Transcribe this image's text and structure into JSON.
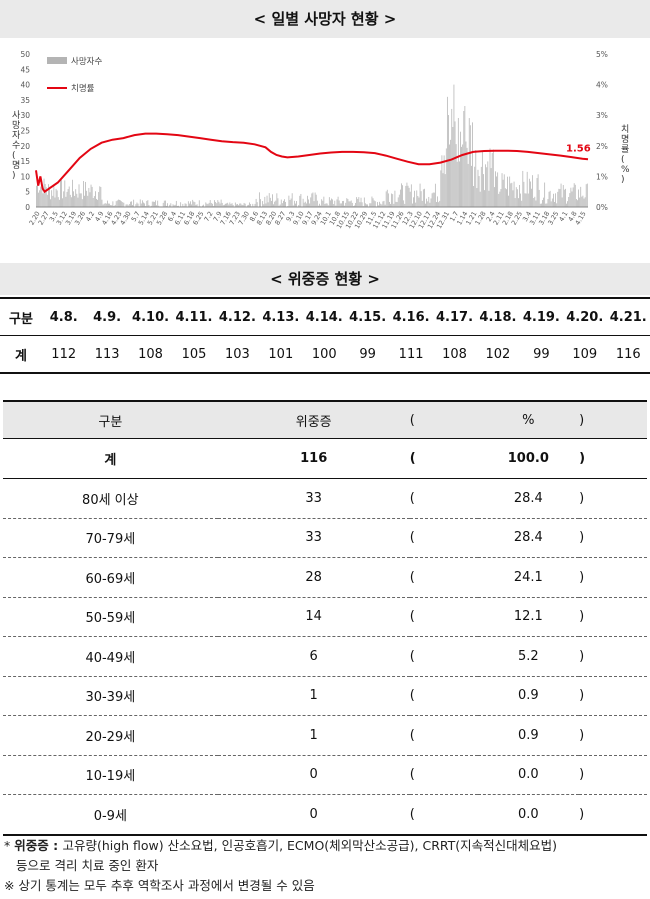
{
  "section1_title": "< 일별 사망자 현황 >",
  "section2_title": "< 위중증 현황 >",
  "chart_data": {
    "type": "bar",
    "title": "< 일별 사망자 현황 >",
    "ylabel": "사망자수(명)",
    "y2label": "치명률(%)",
    "ylim": [
      0,
      50
    ],
    "yticks": [
      "0",
      "5",
      "10",
      "15",
      "20",
      "25",
      "30",
      "35",
      "40",
      "45",
      "50"
    ],
    "y2lim": [
      0,
      5
    ],
    "y2ticks": [
      "0%",
      "1%",
      "2%",
      "3%",
      "4%",
      "5%"
    ],
    "legend": [
      "사망자수",
      "치명률"
    ],
    "legend_position": "top-left",
    "xtick_labels": [
      "2.20",
      "2.27",
      "3.5",
      "3.12",
      "3.19",
      "3.26",
      "4.2",
      "4.9",
      "4.16",
      "4.23",
      "4.30",
      "5.7",
      "5.14",
      "5.21",
      "5.28",
      "6.4",
      "6.11",
      "6.18",
      "6.25",
      "7.2",
      "7.9",
      "7.16",
      "7.23",
      "7.30",
      "8.6",
      "8.13",
      "8.20",
      "8.27",
      "9.3",
      "9.10",
      "9.17",
      "9.24",
      "10.1",
      "10.8",
      "10.15",
      "10.22",
      "10.29",
      "11.5",
      "11.12",
      "11.19",
      "11.26",
      "12.3",
      "12.10",
      "12.17",
      "12.24",
      "12.31",
      "1.7",
      "1.14",
      "1.21",
      "1.28",
      "2.4",
      "2.11",
      "2.18",
      "2.25",
      "3.4",
      "3.11",
      "3.18",
      "3.25",
      "4.1",
      "4.8",
      "4.15"
    ],
    "fatality_annotation": "1.56",
    "series": [
      {
        "name": "사망자수",
        "kind": "bar",
        "color": "#b4b4b4"
      },
      {
        "name": "치명률",
        "kind": "line",
        "color": "#e30613",
        "points": [
          [
            0,
            1.2
          ],
          [
            2,
            0.7
          ],
          [
            4,
            1.0
          ],
          [
            6,
            0.6
          ],
          [
            8,
            0.5
          ],
          [
            12,
            0.6
          ],
          [
            20,
            0.8
          ],
          [
            30,
            1.2
          ],
          [
            40,
            1.6
          ],
          [
            50,
            1.9
          ],
          [
            60,
            2.1
          ],
          [
            70,
            2.2
          ],
          [
            80,
            2.25
          ],
          [
            90,
            2.35
          ],
          [
            100,
            2.4
          ],
          [
            110,
            2.4
          ],
          [
            120,
            2.38
          ],
          [
            130,
            2.35
          ],
          [
            140,
            2.3
          ],
          [
            150,
            2.25
          ],
          [
            160,
            2.2
          ],
          [
            170,
            2.15
          ],
          [
            180,
            2.12
          ],
          [
            190,
            2.1
          ],
          [
            200,
            2.05
          ],
          [
            210,
            1.95
          ],
          [
            215,
            1.8
          ],
          [
            220,
            1.7
          ],
          [
            225,
            1.65
          ],
          [
            230,
            1.62
          ],
          [
            240,
            1.65
          ],
          [
            250,
            1.7
          ],
          [
            260,
            1.75
          ],
          [
            270,
            1.78
          ],
          [
            280,
            1.8
          ],
          [
            290,
            1.8
          ],
          [
            300,
            1.79
          ],
          [
            310,
            1.76
          ],
          [
            320,
            1.68
          ],
          [
            330,
            1.58
          ],
          [
            340,
            1.48
          ],
          [
            350,
            1.4
          ],
          [
            360,
            1.4
          ],
          [
            370,
            1.45
          ],
          [
            380,
            1.55
          ],
          [
            390,
            1.7
          ],
          [
            400,
            1.8
          ],
          [
            410,
            1.83
          ],
          [
            420,
            1.84
          ],
          [
            430,
            1.84
          ],
          [
            440,
            1.83
          ],
          [
            450,
            1.8
          ],
          [
            460,
            1.76
          ],
          [
            470,
            1.72
          ],
          [
            480,
            1.68
          ],
          [
            490,
            1.63
          ],
          [
            500,
            1.58
          ],
          [
            505,
            1.56
          ]
        ]
      }
    ],
    "daily_deaths_peak_dates": {
      "12.29": 40,
      "12.24": 36
    }
  },
  "severe_daily": {
    "header_label": "구분",
    "dates": [
      "4.8.",
      "4.9.",
      "4.10.",
      "4.11.",
      "4.12.",
      "4.13.",
      "4.14.",
      "4.15.",
      "4.16.",
      "4.17.",
      "4.18.",
      "4.19.",
      "4.20.",
      "4.21."
    ],
    "total_label": "계",
    "values": [
      "112",
      "113",
      "108",
      "105",
      "103",
      "101",
      "100",
      "99",
      "111",
      "108",
      "102",
      "99",
      "109",
      "116"
    ]
  },
  "age_table": {
    "headers": {
      "group": "구분",
      "severe": "위중증",
      "open": "(",
      "pct": "%",
      "close": ")"
    },
    "rows": [
      {
        "group": "계",
        "severe": "116",
        "pct": "100.0"
      },
      {
        "group": "80세 이상",
        "severe": "33",
        "pct": "28.4"
      },
      {
        "group": "70-79세",
        "severe": "33",
        "pct": "28.4"
      },
      {
        "group": "60-69세",
        "severe": "28",
        "pct": "24.1"
      },
      {
        "group": "50-59세",
        "severe": "14",
        "pct": "12.1"
      },
      {
        "group": "40-49세",
        "severe": "6",
        "pct": "5.2"
      },
      {
        "group": "30-39세",
        "severe": "1",
        "pct": "0.9"
      },
      {
        "group": "20-29세",
        "severe": "1",
        "pct": "0.9"
      },
      {
        "group": "10-19세",
        "severe": "0",
        "pct": "0.0"
      },
      {
        "group": "0-9세",
        "severe": "0",
        "pct": "0.0"
      }
    ]
  },
  "notes": {
    "note1_prefix": "* ",
    "note1_bold": "위중증 : ",
    "note1_text": "고유량(high flow) 산소요법, 인공호흡기, ECMO(체외막산소공급), CRRT(지속적신대체요법)",
    "note1_text2": "등으로 격리 치료 중인 환자",
    "note2": "※ 상기 통계는 모두 추후 역학조사 과정에서 변경될 수 있음"
  }
}
